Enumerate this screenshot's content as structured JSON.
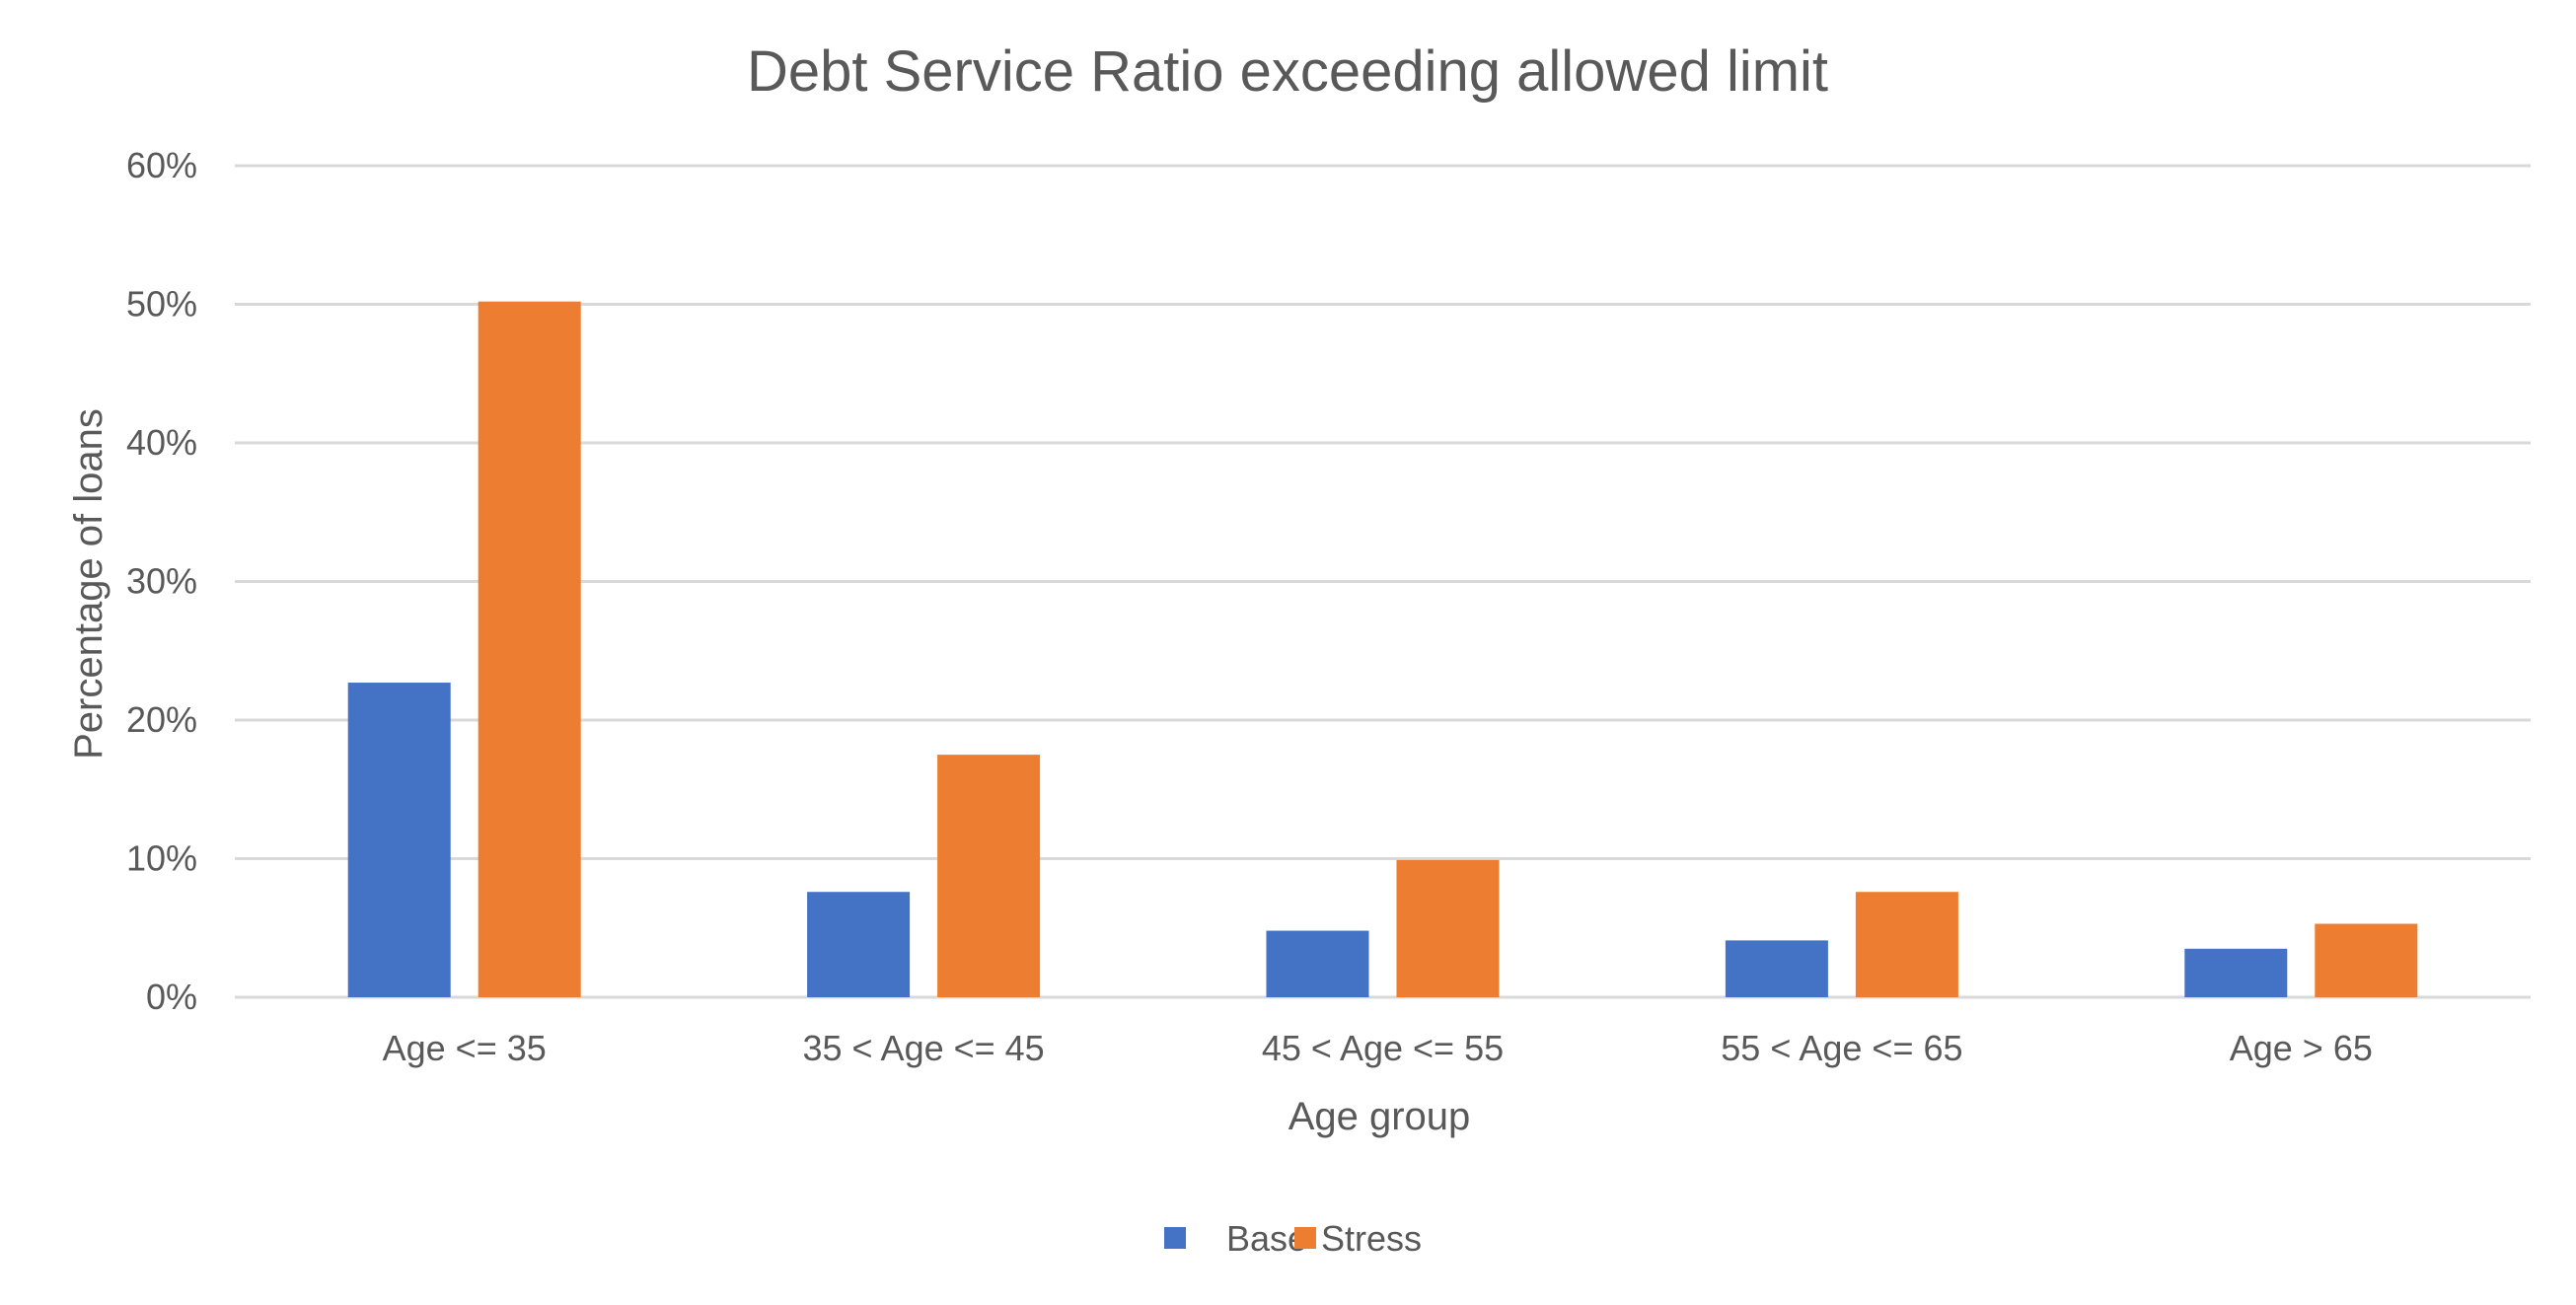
{
  "chart_data": {
    "type": "bar",
    "title": "Debt Service Ratio exceeding allowed limit",
    "xlabel": "Age group",
    "ylabel": "Percentage of loans",
    "categories": [
      "Age <= 35",
      "35 < Age <= 45",
      "45 < Age <= 55",
      "55 < Age <= 65",
      "Age > 65"
    ],
    "series": [
      {
        "name": "Base",
        "color": "#4472C4",
        "values": [
          22.7,
          7.6,
          4.8,
          4.1,
          3.5
        ]
      },
      {
        "name": "Stress",
        "color": "#ED7D31",
        "values": [
          50.2,
          17.5,
          9.9,
          7.6,
          5.3
        ]
      }
    ],
    "ylim": [
      0,
      60
    ],
    "yticks": [
      0,
      10,
      20,
      30,
      40,
      50,
      60
    ],
    "ytick_labels": [
      "0%",
      "10%",
      "20%",
      "30%",
      "40%",
      "50%",
      "60%"
    ],
    "grid": true,
    "legend_position": "bottom"
  }
}
